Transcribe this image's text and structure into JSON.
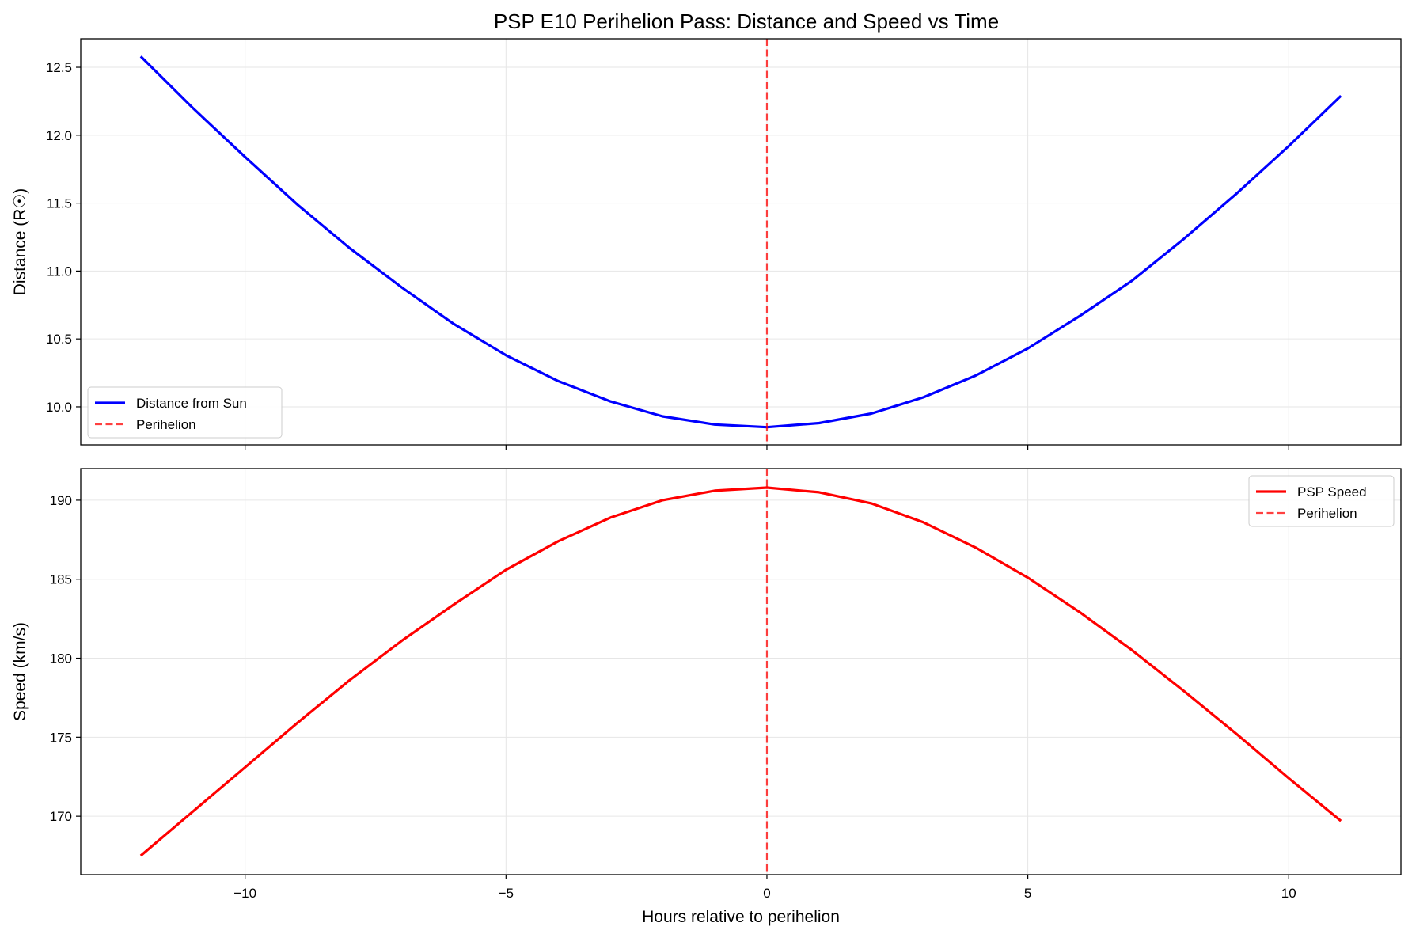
{
  "title": "PSP E10 Perihelion Pass: Distance and Speed vs Time",
  "colors": {
    "distance": "#0000ff",
    "speed": "#ff0000",
    "perihelion": "#ff0000",
    "grid": "#e6e6e6"
  },
  "chart_data": [
    {
      "type": "line",
      "panel": "top",
      "ylabel": "Distance (R☉)",
      "xlabel": "",
      "xlim": [
        -13.15,
        12.15
      ],
      "ylim": [
        9.72,
        12.71
      ],
      "xticks": [
        -10,
        -5,
        0,
        5,
        10
      ],
      "yticks": [
        10.0,
        10.5,
        11.0,
        11.5,
        12.0,
        12.5
      ],
      "ytick_labels": [
        "10.0",
        "10.5",
        "11.0",
        "11.5",
        "12.0",
        "12.5"
      ],
      "grid": true,
      "legend_position": "lower-left",
      "x": [
        -12,
        -11,
        -10,
        -9,
        -8,
        -7,
        -6,
        -5,
        -4,
        -3,
        -2,
        -1,
        0,
        1,
        2,
        3,
        4,
        5,
        6,
        7,
        8,
        9,
        10,
        11
      ],
      "series": [
        {
          "name": "Distance from Sun",
          "color": "#0000ff",
          "values": [
            12.58,
            12.2,
            11.84,
            11.49,
            11.17,
            10.88,
            10.61,
            10.38,
            10.19,
            10.04,
            9.93,
            9.87,
            9.85,
            9.88,
            9.95,
            10.07,
            10.23,
            10.43,
            10.67,
            10.93,
            11.24,
            11.57,
            11.92,
            12.29
          ]
        }
      ],
      "vline": {
        "name": "Perihelion",
        "x": 0,
        "style": "dashed"
      }
    },
    {
      "type": "line",
      "panel": "bottom",
      "ylabel": "Speed (km/s)",
      "xlabel": "Hours relative to perihelion",
      "xlim": [
        -13.15,
        12.15
      ],
      "ylim": [
        166.3,
        192.0
      ],
      "xticks": [
        -10,
        -5,
        0,
        5,
        10
      ],
      "xtick_labels": [
        "−10",
        "−5",
        "0",
        "5",
        "10"
      ],
      "yticks": [
        170,
        175,
        180,
        185,
        190
      ],
      "ytick_labels": [
        "170",
        "175",
        "180",
        "185",
        "190"
      ],
      "grid": true,
      "legend_position": "top-right",
      "x": [
        -12,
        -11,
        -10,
        -9,
        -8,
        -7,
        -6,
        -5,
        -4,
        -3,
        -2,
        -1,
        0,
        1,
        2,
        3,
        4,
        5,
        6,
        7,
        8,
        9,
        10,
        11
      ],
      "series": [
        {
          "name": "PSP Speed",
          "color": "#ff0000",
          "values": [
            167.5,
            170.3,
            173.1,
            175.9,
            178.6,
            181.1,
            183.4,
            185.6,
            187.4,
            188.9,
            190.0,
            190.6,
            190.8,
            190.5,
            189.8,
            188.6,
            187.0,
            185.1,
            182.9,
            180.5,
            177.9,
            175.2,
            172.4,
            169.7
          ]
        }
      ],
      "vline": {
        "name": "Perihelion",
        "x": 0,
        "style": "dashed"
      }
    }
  ]
}
